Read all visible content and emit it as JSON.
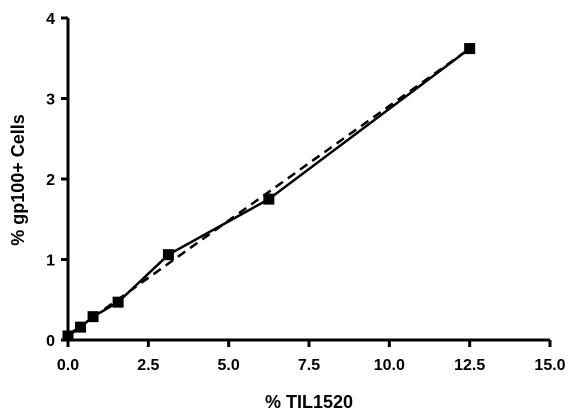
{
  "chart_data": {
    "type": "scatter",
    "xlabel": "% TIL1520",
    "ylabel": "% gp100+  Cells",
    "xlim": [
      0,
      15
    ],
    "ylim": [
      0,
      4
    ],
    "xticks": [
      0,
      2.5,
      5,
      7.5,
      10,
      12.5,
      15
    ],
    "xtick_labels": [
      "0.0",
      "2.5",
      "5.0",
      "7.5",
      "10.0",
      "12.5",
      "15.0"
    ],
    "yticks": [
      0,
      1,
      2,
      3,
      4
    ],
    "ytick_labels": [
      "0",
      "1",
      "2",
      "3",
      "4"
    ],
    "grid": false,
    "series": [
      {
        "style": "solid line with square markers",
        "x": [
          0,
          0.39,
          0.78,
          1.56,
          3.125,
          6.25,
          12.5
        ],
        "y": [
          0.05,
          0.16,
          0.29,
          0.47,
          1.06,
          1.75,
          3.62
        ]
      }
    ],
    "fit_line": {
      "style": "dashed",
      "x": [
        0,
        12.5
      ],
      "y": [
        0.06,
        3.62
      ]
    }
  }
}
